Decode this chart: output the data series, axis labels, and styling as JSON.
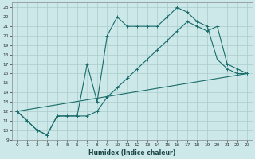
{
  "xlabel": "Humidex (Indice chaleur)",
  "background_color": "#cce8e8",
  "grid_color": "#aacccc",
  "line_color": "#1a6b6b",
  "xlim": [
    -0.5,
    23.5
  ],
  "ylim": [
    9,
    23.5
  ],
  "xticks": [
    0,
    1,
    2,
    3,
    4,
    5,
    6,
    7,
    8,
    9,
    10,
    11,
    12,
    13,
    14,
    15,
    16,
    17,
    18,
    19,
    20,
    21,
    22,
    23
  ],
  "yticks": [
    9,
    10,
    11,
    12,
    13,
    14,
    15,
    16,
    17,
    18,
    19,
    20,
    21,
    22,
    23
  ],
  "line1_x": [
    0,
    1,
    2,
    3,
    4,
    5,
    6,
    7,
    8,
    9,
    10,
    11,
    12,
    13,
    14,
    15,
    16,
    17,
    18,
    19,
    20,
    21,
    22,
    23
  ],
  "line1_y": [
    12,
    11,
    10,
    9.5,
    11.5,
    11.5,
    11.5,
    17,
    13,
    20,
    22,
    21,
    21,
    21,
    21,
    22,
    23,
    22.5,
    21.5,
    21,
    17.5,
    16.5,
    16,
    16
  ],
  "line2_x": [
    0,
    1,
    2,
    3,
    4,
    5,
    6,
    7,
    8,
    9,
    10,
    11,
    12,
    13,
    14,
    15,
    16,
    17,
    18,
    19,
    20,
    21,
    22,
    23
  ],
  "line2_y": [
    12,
    11,
    10,
    9.5,
    11.5,
    11.5,
    11.5,
    11.5,
    12,
    13.5,
    14.5,
    15.5,
    16.5,
    17.5,
    18.5,
    19.5,
    20.5,
    21.5,
    21,
    20.5,
    21,
    17,
    16.5,
    16
  ],
  "line3_x": [
    0,
    23
  ],
  "line3_y": [
    12,
    16
  ]
}
